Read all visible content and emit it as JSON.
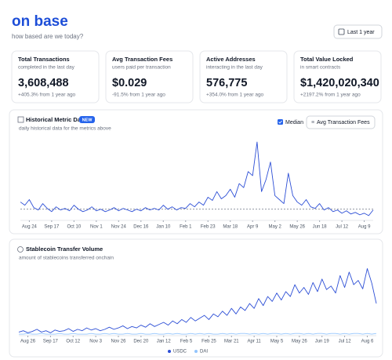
{
  "header": {
    "title": "on base",
    "subtitle": "how based are we today?",
    "range_button": "Last 1 year"
  },
  "cards": [
    {
      "title": "Total Transactions",
      "subtitle": "completed in the last day",
      "value": "3,608,488",
      "change": "+405.3% from 1 year ago"
    },
    {
      "title": "Avg Transaction Fees",
      "subtitle": "users paid per transaction",
      "value": "$0.029",
      "change": "-91.5% from 1 year ago"
    },
    {
      "title": "Active Addresses",
      "subtitle": "interacting in the last day",
      "value": "576,775",
      "change": "+354.0% from 1 year ago"
    },
    {
      "title": "Total Value Locked",
      "subtitle": "in smart contracts",
      "value": "$1,420,020,340",
      "change": "+2197.2% from 1 year ago"
    }
  ],
  "chart_data": [
    {
      "type": "line",
      "title": "Historical Metric Data",
      "badge": "NEW",
      "subtitle": "daily historical data for the metrics above",
      "median_label": "Median",
      "metric_select": "Avg Transaction Fees",
      "median": 13,
      "xlim": [
        0,
        79
      ],
      "ylim": [
        0,
        100
      ],
      "xticks": [
        {
          "value": 2,
          "label": "Aug 24"
        },
        {
          "value": 7,
          "label": "Sep 17"
        },
        {
          "value": 12,
          "label": "Oct 10"
        },
        {
          "value": 17,
          "label": "Nov 1"
        },
        {
          "value": 22,
          "label": "Nov 24"
        },
        {
          "value": 27,
          "label": "Dec 16"
        },
        {
          "value": 32,
          "label": "Jan 10"
        },
        {
          "value": 37,
          "label": "Feb 1"
        },
        {
          "value": 42,
          "label": "Feb 23"
        },
        {
          "value": 47,
          "label": "Mar 18"
        },
        {
          "value": 52,
          "label": "Apr 9"
        },
        {
          "value": 57,
          "label": "May 2"
        },
        {
          "value": 62,
          "label": "May 26"
        },
        {
          "value": 67,
          "label": "Jun 18"
        },
        {
          "value": 72,
          "label": "Jul 12"
        },
        {
          "value": 77,
          "label": "Aug 9"
        }
      ],
      "series": [
        {
          "color": "#2d4fd6",
          "values": [
            22,
            18,
            25,
            15,
            12,
            20,
            14,
            10,
            16,
            12,
            14,
            11,
            18,
            13,
            10,
            12,
            16,
            11,
            13,
            10,
            12,
            15,
            11,
            14,
            12,
            10,
            13,
            11,
            15,
            12,
            14,
            12,
            18,
            13,
            16,
            12,
            15,
            14,
            20,
            16,
            22,
            18,
            28,
            24,
            35,
            26,
            30,
            38,
            28,
            45,
            40,
            60,
            55,
            97,
            35,
            50,
            72,
            30,
            25,
            20,
            58,
            30,
            22,
            18,
            25,
            16,
            14,
            20,
            12,
            15,
            10,
            12,
            8,
            11,
            7,
            9,
            6,
            8,
            5,
            12
          ]
        }
      ]
    },
    {
      "type": "line",
      "title": "Stablecoin Transfer Volume",
      "subtitle": "amount of stablecoins transferred onchain",
      "xlim": [
        0,
        79
      ],
      "ylim": [
        0,
        100
      ],
      "xticks": [
        {
          "value": 2,
          "label": "Aug 26"
        },
        {
          "value": 7,
          "label": "Sep 17"
        },
        {
          "value": 12,
          "label": "Oct 12"
        },
        {
          "value": 17,
          "label": "Nov 3"
        },
        {
          "value": 22,
          "label": "Nov 26"
        },
        {
          "value": 27,
          "label": "Dec 20"
        },
        {
          "value": 32,
          "label": "Jan 12"
        },
        {
          "value": 37,
          "label": "Feb 5"
        },
        {
          "value": 42,
          "label": "Feb 25"
        },
        {
          "value": 47,
          "label": "Mar 21"
        },
        {
          "value": 52,
          "label": "Apr 11"
        },
        {
          "value": 57,
          "label": "May 5"
        },
        {
          "value": 62,
          "label": "May 26"
        },
        {
          "value": 67,
          "label": "Jun 19"
        },
        {
          "value": 72,
          "label": "Jul 12"
        },
        {
          "value": 77,
          "label": "Aug 6"
        }
      ],
      "series": [
        {
          "name": "USDC",
          "color": "#2d4fd6",
          "values": [
            4,
            6,
            3,
            5,
            8,
            4,
            6,
            3,
            7,
            5,
            6,
            9,
            5,
            8,
            6,
            10,
            7,
            9,
            6,
            8,
            11,
            8,
            10,
            13,
            9,
            12,
            10,
            14,
            11,
            16,
            12,
            15,
            18,
            14,
            20,
            16,
            22,
            18,
            25,
            20,
            24,
            28,
            22,
            30,
            26,
            34,
            28,
            38,
            30,
            40,
            35,
            45,
            38,
            52,
            42,
            55,
            48,
            60,
            50,
            62,
            55,
            72,
            60,
            68,
            58,
            75,
            62,
            80,
            65,
            70,
            60,
            85,
            68,
            90,
            72,
            78,
            66,
            95,
            74,
            45
          ]
        },
        {
          "name": "DAI",
          "color": "#93c5fd",
          "values": [
            1,
            1,
            2,
            1,
            1,
            2,
            1,
            1,
            1,
            2,
            1,
            1,
            2,
            1,
            1,
            1,
            2,
            1,
            1,
            2,
            1,
            2,
            1,
            1,
            2,
            1,
            1,
            2,
            1,
            1,
            2,
            1,
            1,
            2,
            1,
            2,
            1,
            1,
            2,
            1,
            2,
            1,
            2,
            1,
            1,
            2,
            1,
            2,
            1,
            2,
            2,
            1,
            2,
            1,
            2,
            1,
            2,
            2,
            1,
            2,
            1,
            2,
            2,
            1,
            2,
            1,
            2,
            2,
            1,
            2,
            2,
            1,
            2,
            1,
            2,
            2,
            1,
            2,
            1,
            2
          ]
        }
      ]
    }
  ]
}
